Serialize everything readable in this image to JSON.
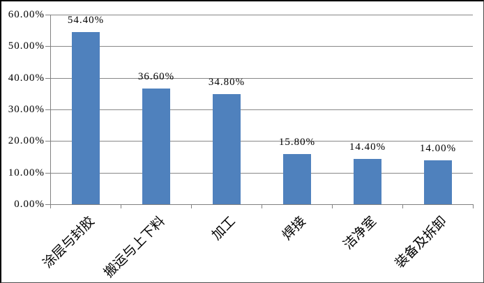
{
  "chart_data": {
    "type": "bar",
    "title": "",
    "xlabel": "",
    "ylabel": "",
    "categories": [
      "涂层与封胶",
      "搬运与上下料",
      "加工",
      "焊接",
      "洁净室",
      "装备及拆卸"
    ],
    "values": [
      54.4,
      36.6,
      34.8,
      15.8,
      14.4,
      14.0
    ],
    "data_labels": [
      "54.40%",
      "36.60%",
      "34.80%",
      "15.80%",
      "14.40%",
      "14.00%"
    ],
    "y_tick_labels": [
      "0.00%",
      "10.00%",
      "20.00%",
      "30.00%",
      "40.00%",
      "50.00%",
      "60.00%"
    ],
    "y_tick_values": [
      0,
      10,
      20,
      30,
      40,
      50,
      60
    ],
    "ylim": [
      0,
      60
    ],
    "grid": true,
    "legend": false,
    "colors": {
      "bar_fill": "#4f81bd",
      "gridline": "#878787",
      "axis": "#808080",
      "text": "#000000",
      "background": "#ffffff"
    }
  }
}
